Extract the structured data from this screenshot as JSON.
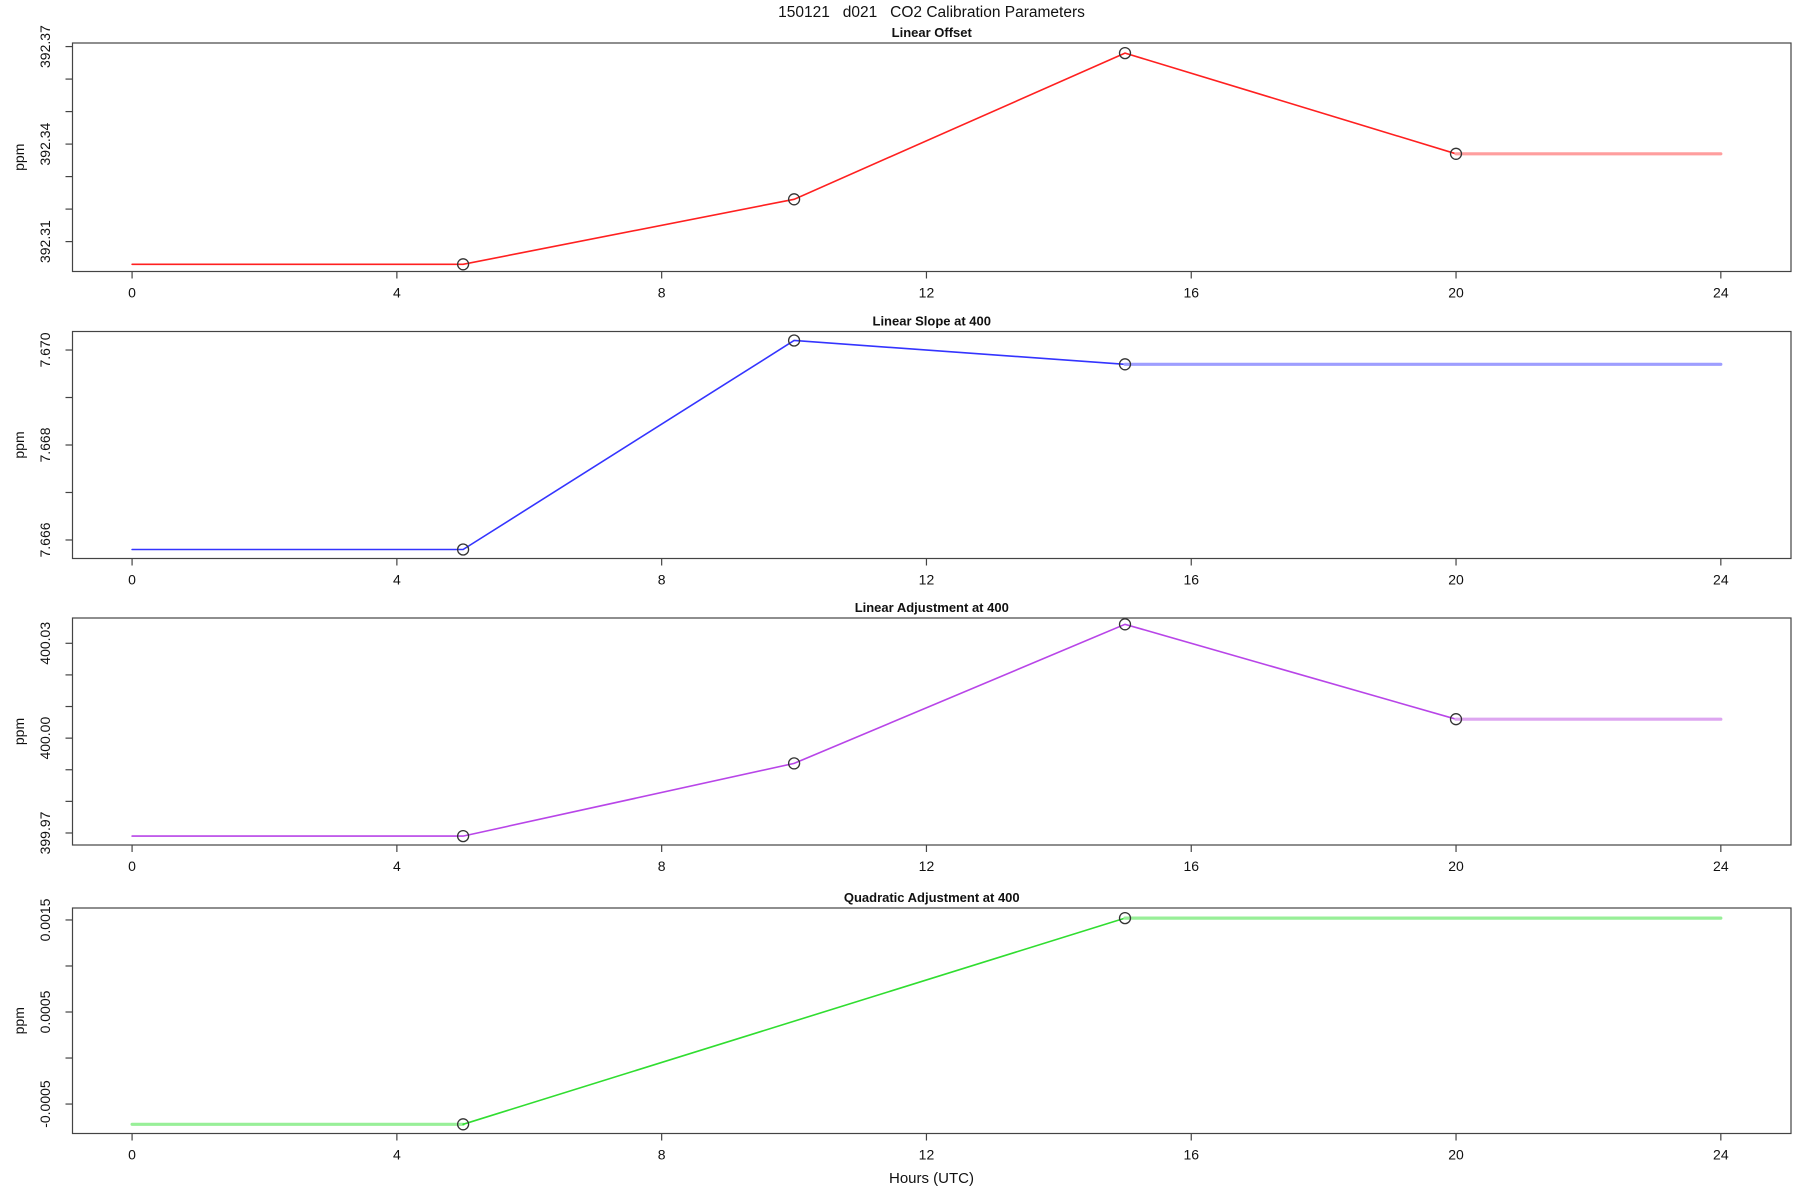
{
  "title": "150121   d021   CO2 Calibration Parameters",
  "xlabel": "Hours (UTC)",
  "x_axis": {
    "ticks": [
      0,
      4,
      8,
      12,
      16,
      20,
      24
    ]
  },
  "chart_data": [
    {
      "type": "line",
      "title": "Linear Offset",
      "ylabel": "ppm",
      "color": "#ff2020",
      "ext_color": "#ff9e9e",
      "ylim": [
        392.3008,
        392.3711
      ],
      "yticks": [
        {
          "v": 392.31,
          "label": "392.31"
        },
        {
          "v": 392.32,
          "label": ""
        },
        {
          "v": 392.33,
          "label": ""
        },
        {
          "v": 392.34,
          "label": "392.34"
        },
        {
          "v": 392.35,
          "label": ""
        },
        {
          "v": 392.36,
          "label": ""
        },
        {
          "v": 392.37,
          "label": "392.37"
        }
      ],
      "lines": [
        {
          "x": [
            0,
            5,
            10,
            15,
            20
          ],
          "y": [
            392.303,
            392.303,
            392.323,
            392.368,
            392.337
          ],
          "ext": false
        },
        {
          "x": [
            20,
            24
          ],
          "y": [
            392.337,
            392.337
          ],
          "ext": true
        }
      ],
      "markers": {
        "x": [
          5,
          10,
          15,
          20
        ],
        "y": [
          392.303,
          392.323,
          392.368,
          392.337
        ]
      }
    },
    {
      "type": "line",
      "title": "Linear Slope at 400",
      "ylabel": "ppm",
      "color": "#3434ff",
      "ext_color": "#9e9eff",
      "ylim": [
        7.66561,
        7.67039
      ],
      "yticks": [
        {
          "v": 7.666,
          "label": "7.666"
        },
        {
          "v": 7.667,
          "label": ""
        },
        {
          "v": 7.668,
          "label": "7.668"
        },
        {
          "v": 7.669,
          "label": ""
        },
        {
          "v": 7.67,
          "label": "7.670"
        }
      ],
      "lines": [
        {
          "x": [
            0,
            5,
            10,
            15
          ],
          "y": [
            7.6658,
            7.6658,
            7.6702,
            7.6697
          ],
          "ext": false
        },
        {
          "x": [
            15,
            24
          ],
          "y": [
            7.6697,
            7.6697
          ],
          "ext": true
        }
      ],
      "markers": {
        "x": [
          5,
          10,
          15
        ],
        "y": [
          7.6658,
          7.6702,
          7.6697
        ]
      }
    },
    {
      "type": "line",
      "title": "Linear Adjustment at 400",
      "ylabel": "ppm",
      "color": "#b845e8",
      "ext_color": "#dda6f0",
      "ylim": [
        399.9662,
        400.038
      ],
      "yticks": [
        {
          "v": 399.97,
          "label": "399.97"
        },
        {
          "v": 399.98,
          "label": ""
        },
        {
          "v": 399.99,
          "label": ""
        },
        {
          "v": 400.0,
          "label": "400.00"
        },
        {
          "v": 400.01,
          "label": ""
        },
        {
          "v": 400.02,
          "label": ""
        },
        {
          "v": 400.03,
          "label": "400.03"
        }
      ],
      "lines": [
        {
          "x": [
            0,
            5,
            10,
            15,
            20
          ],
          "y": [
            399.969,
            399.969,
            399.992,
            400.036,
            400.006
          ],
          "ext": false
        },
        {
          "x": [
            20,
            24
          ],
          "y": [
            400.006,
            400.006
          ],
          "ext": true
        }
      ],
      "markers": {
        "x": [
          5,
          10,
          15,
          20
        ],
        "y": [
          399.969,
          399.992,
          400.036,
          400.006
        ]
      }
    },
    {
      "type": "line",
      "title": "Quadratic Adjustment at 400",
      "ylabel": "ppm",
      "color": "#30dd30",
      "ext_color": "#98ef98",
      "ylim": [
        -0.00082,
        0.00163
      ],
      "yticks": [
        {
          "v": -0.0005,
          "label": "-0.0005"
        },
        {
          "v": 0.0,
          "label": ""
        },
        {
          "v": 0.0005,
          "label": "0.0005"
        },
        {
          "v": 0.001,
          "label": ""
        },
        {
          "v": 0.0015,
          "label": "0.0015"
        }
      ],
      "lines": [
        {
          "x": [
            0,
            5
          ],
          "y": [
            -0.00072,
            -0.00072
          ],
          "ext": true
        },
        {
          "x": [
            5,
            15
          ],
          "y": [
            -0.00072,
            0.00152
          ],
          "ext": false
        },
        {
          "x": [
            15,
            24
          ],
          "y": [
            0.00152,
            0.00152
          ],
          "ext": true
        }
      ],
      "markers": {
        "x": [
          5,
          15
        ],
        "y": [
          -0.00072,
          0.00152
        ]
      }
    }
  ]
}
